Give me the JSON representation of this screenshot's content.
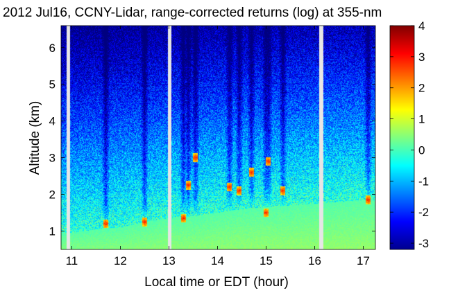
{
  "chart_data": {
    "type": "heatmap",
    "title": "2012 Jul16, CCNY-Lidar, range-corrected returns (log) at 355-nm",
    "xlabel": "Local time or EDT (hour)",
    "ylabel": "Altitude (km)",
    "xlim": [
      10.78,
      17.25
    ],
    "ylim": [
      0.5,
      6.6
    ],
    "x_ticks": [
      11,
      12,
      13,
      14,
      15,
      16,
      17
    ],
    "y_ticks": [
      1,
      2,
      3,
      4,
      5,
      6
    ],
    "colorbar": {
      "range": [
        -3.2,
        4
      ],
      "ticks": [
        4,
        3,
        2,
        1,
        0,
        -1,
        -2,
        -3
      ],
      "colormap": "jet"
    },
    "data_gaps_hours": [
      [
        10.9,
        10.97
      ],
      [
        12.98,
        13.05
      ],
      [
        16.1,
        16.18
      ]
    ],
    "boundary_layer": {
      "times": [
        11.0,
        11.5,
        12.0,
        12.5,
        13.0,
        13.5,
        14.0,
        14.5,
        15.0,
        15.5,
        16.0,
        16.5,
        17.0
      ],
      "top_altitude_km": [
        0.95,
        1.05,
        1.1,
        1.25,
        1.35,
        1.4,
        1.5,
        1.6,
        1.65,
        1.7,
        1.75,
        1.8,
        1.85
      ]
    },
    "cloud_features": [
      {
        "time": 11.7,
        "altitude_km": 1.2
      },
      {
        "time": 12.5,
        "altitude_km": 1.25
      },
      {
        "time": 13.3,
        "altitude_km": 1.35
      },
      {
        "time": 13.4,
        "altitude_km": 2.25
      },
      {
        "time": 13.55,
        "altitude_km": 3.0
      },
      {
        "time": 14.25,
        "altitude_km": 2.2
      },
      {
        "time": 14.45,
        "altitude_km": 2.1
      },
      {
        "time": 14.7,
        "altitude_km": 2.6
      },
      {
        "time": 15.0,
        "altitude_km": 1.5
      },
      {
        "time": 15.05,
        "altitude_km": 2.9
      },
      {
        "time": 15.35,
        "altitude_km": 2.1
      },
      {
        "time": 17.1,
        "altitude_km": 1.85
      }
    ]
  }
}
